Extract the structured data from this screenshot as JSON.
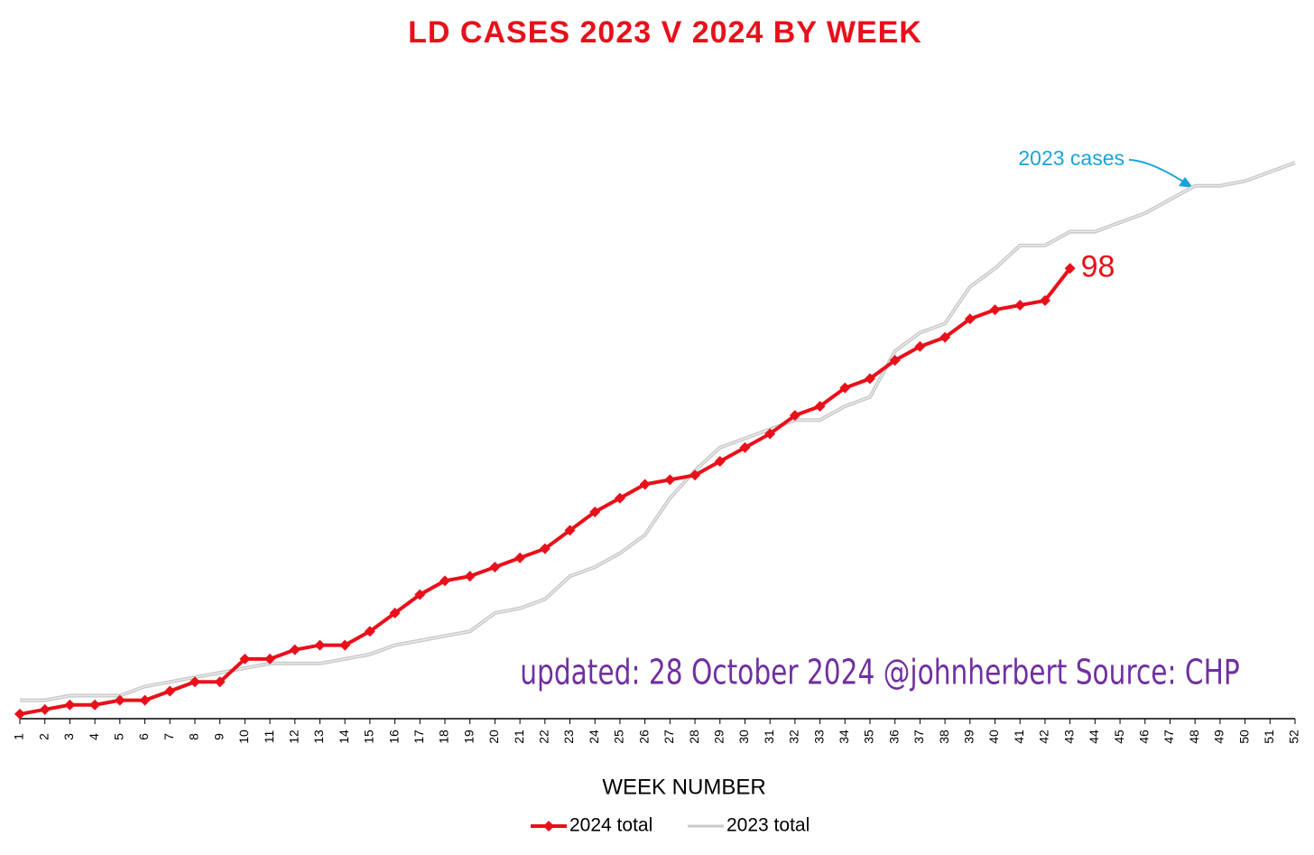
{
  "chart_data": {
    "type": "line",
    "title": "LD CASES 2023 V 2024 BY WEEK",
    "x_label": "WEEK NUMBER",
    "annotations": [
      "2023  cases",
      "updated: 28 October 2024  @johnherbert  Source: CHP"
    ],
    "categories": [
      "1",
      "2",
      "3",
      "4",
      "5",
      "6",
      "7",
      "8",
      "9",
      "10",
      "11",
      "12",
      "13",
      "14",
      "15",
      "16",
      "17",
      "18",
      "19",
      "20",
      "21",
      "22",
      "23",
      "24",
      "25",
      "26",
      "27",
      "28",
      "29",
      "30",
      "31",
      "32",
      "33",
      "34",
      "35",
      "36",
      "37",
      "38",
      "39",
      "40",
      "41",
      "42",
      "43",
      "44",
      "45",
      "46",
      "47",
      "48",
      "49",
      "50",
      "51",
      "52"
    ],
    "ylim": [
      0,
      135
    ],
    "series": [
      {
        "name": "2024 total",
        "color": "#e8101a",
        "values": [
          1,
          2,
          3,
          3,
          4,
          4,
          6,
          8,
          8,
          13,
          13,
          15,
          16,
          16,
          19,
          23,
          27,
          30,
          31,
          33,
          35,
          37,
          41,
          45,
          48,
          51,
          52,
          53,
          56,
          59,
          62,
          66,
          68,
          72,
          74,
          78,
          81,
          83,
          87,
          89,
          90,
          91,
          98,
          null,
          null,
          null,
          null,
          null,
          null,
          null,
          null,
          null
        ]
      },
      {
        "name": "2023 total",
        "color": "#c8c8c8",
        "values": [
          4,
          4,
          5,
          5,
          5,
          7,
          8,
          9,
          10,
          11,
          12,
          12,
          12,
          13,
          14,
          16,
          17,
          18,
          19,
          23,
          24,
          26,
          31,
          33,
          36,
          40,
          48,
          54,
          59,
          61,
          63,
          65,
          65,
          68,
          70,
          80,
          84,
          86,
          94,
          98,
          103,
          103,
          106,
          106,
          108,
          110,
          113,
          116,
          116,
          117,
          119,
          121
        ]
      }
    ]
  }
}
